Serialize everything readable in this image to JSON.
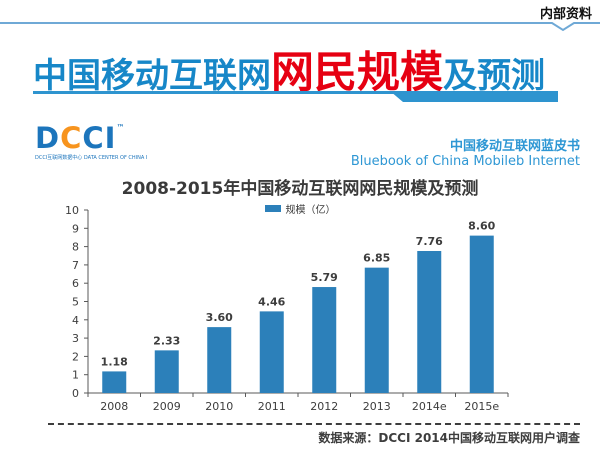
{
  "header": {
    "classification": "内部资料",
    "title_part1": "中国移动互联网",
    "title_part2": "网民规模",
    "title_part3": "及预测"
  },
  "branding": {
    "logo_letters": [
      "D",
      "C",
      "C",
      "I"
    ],
    "logo_tm": "™",
    "logo_tagline": "DCCI互联网数据中心  DATA CENTER OF CHINA INTERNET",
    "bluebook_cn": "中国移动互联网蓝皮书",
    "bluebook_en": "Bluebook of China Mobileb Internet"
  },
  "chart_data": {
    "type": "bar",
    "title": "2008-2015年中国移动互联网网民规模及预测",
    "legend": "规模（亿）",
    "legend_position": "top-center",
    "categories": [
      "2008",
      "2009",
      "2010",
      "2011",
      "2012",
      "2013",
      "2014e",
      "2015e"
    ],
    "values": [
      1.18,
      2.33,
      3.6,
      4.46,
      5.79,
      6.85,
      7.76,
      8.6
    ],
    "value_labels": [
      "1.18",
      "2.33",
      "3.60",
      "4.46",
      "5.79",
      "6.85",
      "7.76",
      "8.60"
    ],
    "xlabel": "",
    "ylabel": "",
    "ylim": [
      0,
      10
    ],
    "ytick_step": 1,
    "grid": false,
    "bar_color": "#2C80BA",
    "axis_color": "#595959",
    "label_color": "#3d3d3d"
  },
  "footer": {
    "source": "数据来源：DCCI 2014中国移动互联网用户调查"
  },
  "colors": {
    "title_blue": "#1787C8",
    "title_red": "#E60012",
    "top_line_blue": "#6FA9D6",
    "underline_blue": "#2E94CF",
    "logo_blue": "#1C75BC",
    "logo_orange": "#F7941E",
    "bluebook_blue": "#2E97D4"
  }
}
